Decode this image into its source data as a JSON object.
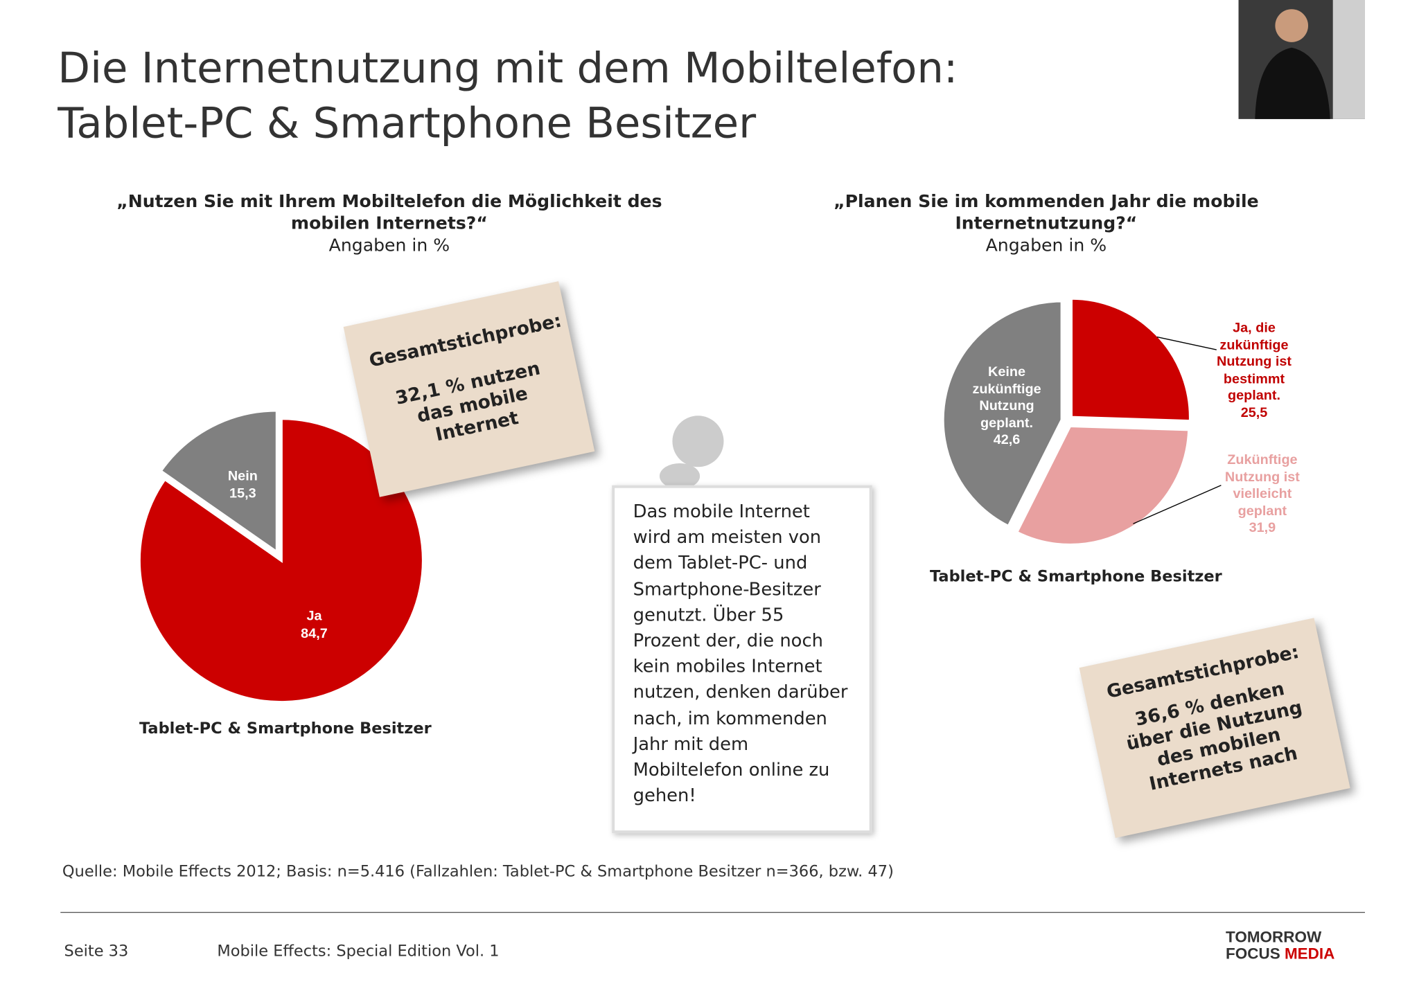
{
  "slide": {
    "title": [
      "Die Internetnutzung mit dem Mobiltelefon:",
      "Tablet-PC & Smartphone Besitzer"
    ],
    "notes": [
      {
        "heading": "Gesamtstichprobe:",
        "text": "32,1 % nutzen das mobile Internet"
      },
      {
        "heading": "Gesamtstichprobe:",
        "text": "36,6 % denken über die Nutzung des mobilen Internets nach"
      }
    ],
    "board": "Das mobile Internet wird am meisten von dem Tablet-PC- und Smartphone-Besitzer genutzt. Über 55 Prozent der, die noch kein mobiles Internet nutzen, denken darüber nach, im kommenden Jahr mit dem Mobiltelefon online zu gehen!",
    "source": "Quelle: Mobile Effects 2012; Basis: n=5.416 (Fallzahlen: Tablet-PC & Smartphone Besitzer n=366, bzw. 47)",
    "footer": {
      "page": "Seite 33",
      "edition": "Mobile Effects: Special Edition Vol. 1",
      "logo": [
        "TOMORROW",
        "FOCUS",
        "MEDIA"
      ]
    }
  },
  "chart_data": [
    {
      "type": "pie",
      "title": "„Nutzen Sie mit Ihrem Mobiltelefon die Möglichkeit des mobilen Internets?“",
      "subtitle": "Angaben in %",
      "caption": "Tablet-PC & Smartphone Besitzer",
      "categories": [
        "Ja",
        "Nein"
      ],
      "values": [
        84.7,
        15.3
      ],
      "value_labels": [
        "84,7",
        "15,3"
      ],
      "colors": [
        "#cc0000",
        "#808080"
      ]
    },
    {
      "type": "pie",
      "title": "„Planen Sie im kommenden Jahr die mobile Internetnutzung?“",
      "subtitle": "Angaben in %",
      "caption": "Tablet-PC & Smartphone Besitzer",
      "categories": [
        "Ja, die zukünftige Nutzung ist bestimmt geplant.",
        "Zukünftige Nutzung ist vielleicht geplant",
        "Keine zukünftige Nutzung geplant."
      ],
      "values": [
        25.5,
        31.9,
        42.6
      ],
      "value_labels": [
        "25,5",
        "31,9",
        "42,6"
      ],
      "colors": [
        "#cc0000",
        "#e8a0a0",
        "#808080"
      ]
    }
  ]
}
